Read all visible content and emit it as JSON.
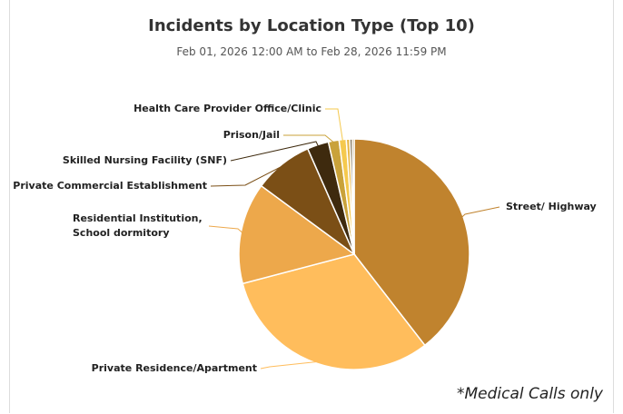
{
  "chart_data": {
    "type": "pie",
    "title": "Incidents by Location Type (Top 10)",
    "subtitle": "Feb 01, 2026 12:00 AM to Feb 28, 2026 11:59 PM",
    "annotation": "*Medical Calls only",
    "categories": [
      "Street/ Highway",
      "Private Residence/Apartment",
      "Residential Institution, School dormitory",
      "Private Commercial Establishment",
      "Skilled Nursing Facility (SNF)",
      "Prison/Jail",
      "Health Care Provider Office/Clinic",
      null,
      null,
      null
    ],
    "values": [
      39.5,
      31.4,
      14.2,
      8.3,
      3.0,
      1.5,
      1.0,
      0.5,
      0.35,
      0.25
    ],
    "colors": [
      "#c0832e",
      "#ffbd5c",
      "#eda84b",
      "#7b4f16",
      "#3e2a0e",
      "#c9a23a",
      "#f5c94e",
      "#e8b84a",
      "#6b5a3a",
      "#a0731f"
    ]
  }
}
